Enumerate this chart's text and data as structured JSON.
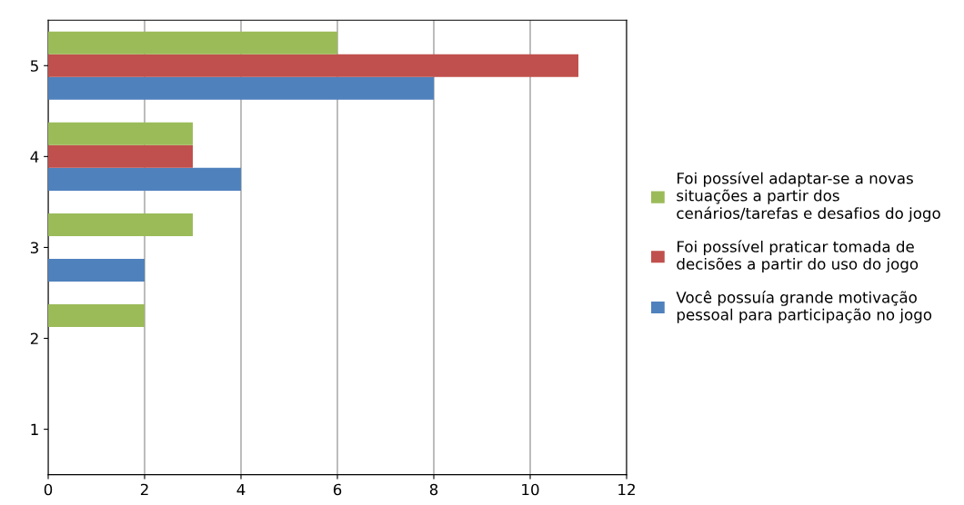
{
  "chart_data": {
    "type": "bar",
    "orientation": "horizontal",
    "categories": [
      "5",
      "4",
      "3",
      "2",
      "1"
    ],
    "series": [
      {
        "name": "Você possuía grande motivação\npessoal para participação no jogo",
        "color": "#4f81bd",
        "values": [
          8,
          4,
          2,
          0,
          0
        ]
      },
      {
        "name": "Foi possível praticar tomada de\ndecisões a partir do uso do jogo",
        "color": "#c0504d",
        "values": [
          11,
          3,
          0,
          0,
          0
        ]
      },
      {
        "name": "Foi possível adaptar-se a novas\nsituações a partir dos\ncenários/tarefas e desafios do jogo",
        "color": "#9bbb59",
        "values": [
          6,
          3,
          3,
          2,
          0
        ]
      }
    ],
    "xlim": [
      0,
      12
    ],
    "xticks": [
      0,
      2,
      4,
      6,
      8,
      10,
      12
    ],
    "grid": "x",
    "legend": "right"
  }
}
